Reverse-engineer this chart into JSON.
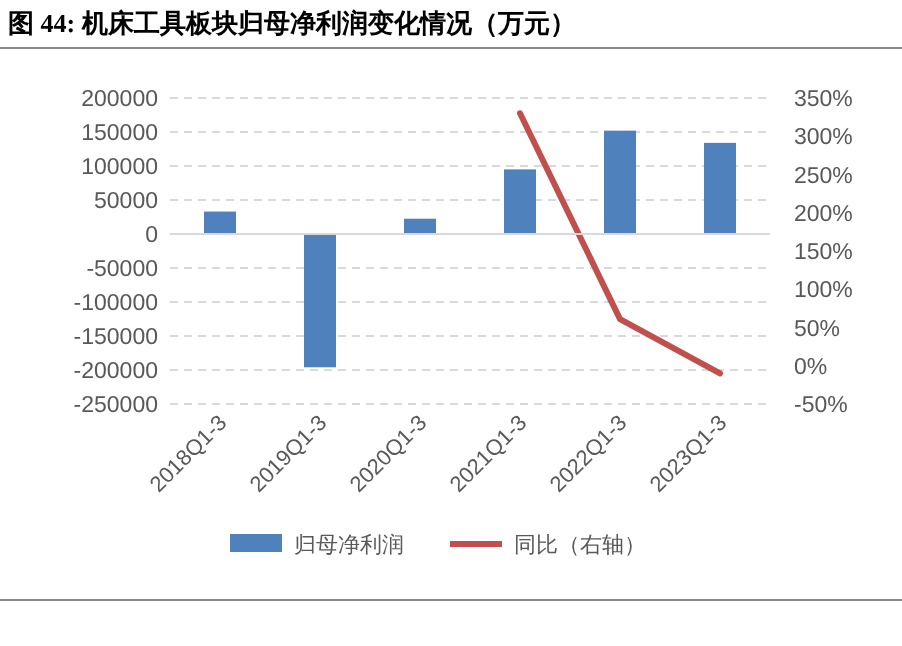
{
  "chart_data": {
    "type": "bar",
    "title": "图 44: 机床工具板块归母净利润变化情况（万元）",
    "categories": [
      "2018Q1-3",
      "2019Q1-3",
      "2020Q1-3",
      "2021Q1-3",
      "2022Q1-3",
      "2023Q1-3"
    ],
    "series": [
      {
        "name": "归母净利润",
        "color": "#4f81bd",
        "values": [
          33000,
          -196000,
          22500,
          95000,
          152000,
          134000
        ]
      },
      {
        "name": "同比（右轴）",
        "type": "line",
        "axis": "y2",
        "color": "#c0504d",
        "values": [
          null,
          null,
          null,
          330,
          61,
          -10
        ]
      }
    ],
    "ylim": [
      -250000,
      200000
    ],
    "yticks": [
      -250000,
      -200000,
      -150000,
      -100000,
      -50000,
      0,
      50000,
      100000,
      150000,
      200000
    ],
    "y2lim": [
      -50,
      350
    ],
    "y2ticks": [
      {
        "value": -50,
        "label": "-50%"
      },
      {
        "value": 0,
        "label": "0%"
      },
      {
        "value": 50,
        "label": "50%"
      },
      {
        "value": 100,
        "label": "100%"
      },
      {
        "value": 150,
        "label": "150%"
      },
      {
        "value": 200,
        "label": "200%"
      },
      {
        "value": 250,
        "label": "250%"
      },
      {
        "value": 300,
        "label": "300%"
      },
      {
        "value": 350,
        "label": "350%"
      }
    ],
    "grid": "y",
    "legend": "bottom"
  }
}
